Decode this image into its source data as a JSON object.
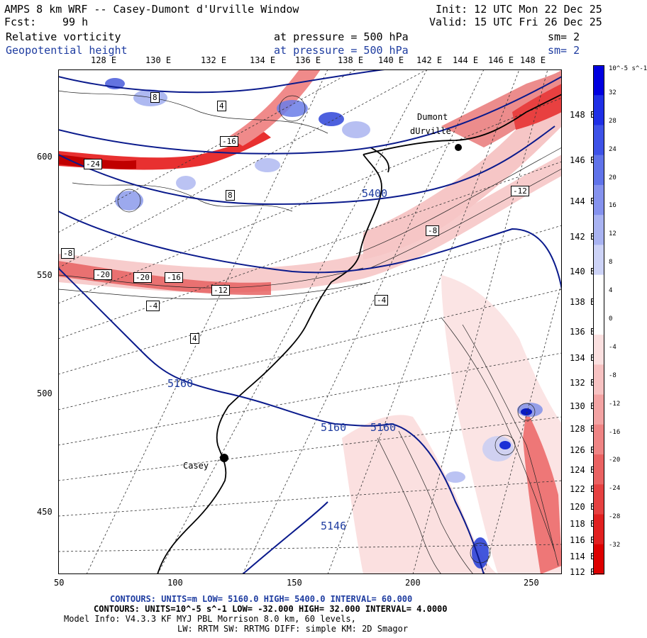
{
  "header": {
    "title": "AMPS 8 km WRF -- Casey-Dumont d'Urville Window",
    "init": "Init: 12 UTC Mon 22 Dec 25",
    "fcst_label": "Fcst:",
    "fcst_value": "99 h",
    "valid": "Valid: 15 UTC Fri 26 Dec 25",
    "field1_name": "Relative vorticity",
    "field1_level": "at pressure =  500 hPa",
    "field1_sm": "sm= 2",
    "field2_name": "Geopotential height",
    "field2_level": "at pressure =  500 hPa",
    "field2_sm": "sm= 2"
  },
  "colors": {
    "positive_vorticity": "#1a2fd6",
    "negative_vorticity": "#e51c1c",
    "height_contour": "#0a1a8c",
    "coastline": "#000000"
  },
  "axes": {
    "top_longitudes": [
      "128 E",
      "130 E",
      "132 E",
      "134 E",
      "136 E",
      "138 E",
      "140 E",
      "142 E",
      "144 E",
      "146 E",
      "148 E"
    ],
    "right_longitudes": [
      "148 E",
      "146 E",
      "144 E",
      "142 E",
      "140 E",
      "138 E",
      "136 E",
      "134 E",
      "132 E",
      "130 E",
      "128 E",
      "126 E",
      "124 E",
      "122 E",
      "120 E",
      "118 E",
      "116 E",
      "114 E",
      "112 E"
    ],
    "bottom_ticks": [
      "50",
      "100",
      "150",
      "200",
      "250"
    ],
    "left_ticks": [
      "600",
      "550",
      "500",
      "450"
    ]
  },
  "stations": [
    {
      "name": "Dumont dUrville",
      "line1": "Dumont",
      "line2": "dUrville"
    },
    {
      "name": "Casey",
      "line1": "Casey"
    }
  ],
  "height_labels": [
    "5400",
    "5160",
    "5160",
    "5160",
    "5146"
  ],
  "vorticity_labels": [
    "-24",
    "-20",
    "-20",
    "-16",
    "-16",
    "-12",
    "-12",
    "-8",
    "-8",
    "-4",
    "-4",
    "4",
    "4",
    "8",
    "8"
  ],
  "colorbar": {
    "unit": "10^-5 s^-1",
    "ticks": [
      "32",
      "28",
      "24",
      "20",
      "16",
      "12",
      "8",
      "4",
      "0",
      "-4",
      "-8",
      "-12",
      "-16",
      "-20",
      "-24",
      "-28",
      "-32"
    ]
  },
  "footer": {
    "contours1": "CONTOURS:  UNITS=m  LOW=  5160.0      HIGH=  5400.0      INTERVAL=   60.000",
    "contours2": "CONTOURS:  UNITS=10^-5 s^-1  LOW= -32.000      HIGH=  32.000      INTERVAL=   4.0000",
    "model_info": "Model Info: V4.3.3   KF      MYJ PBL  Morrison          8.0 km,  60 levels,",
    "physics": "LW: RRTM SW: RRTMG   DIFF: simple KM: 2D Smagor"
  }
}
